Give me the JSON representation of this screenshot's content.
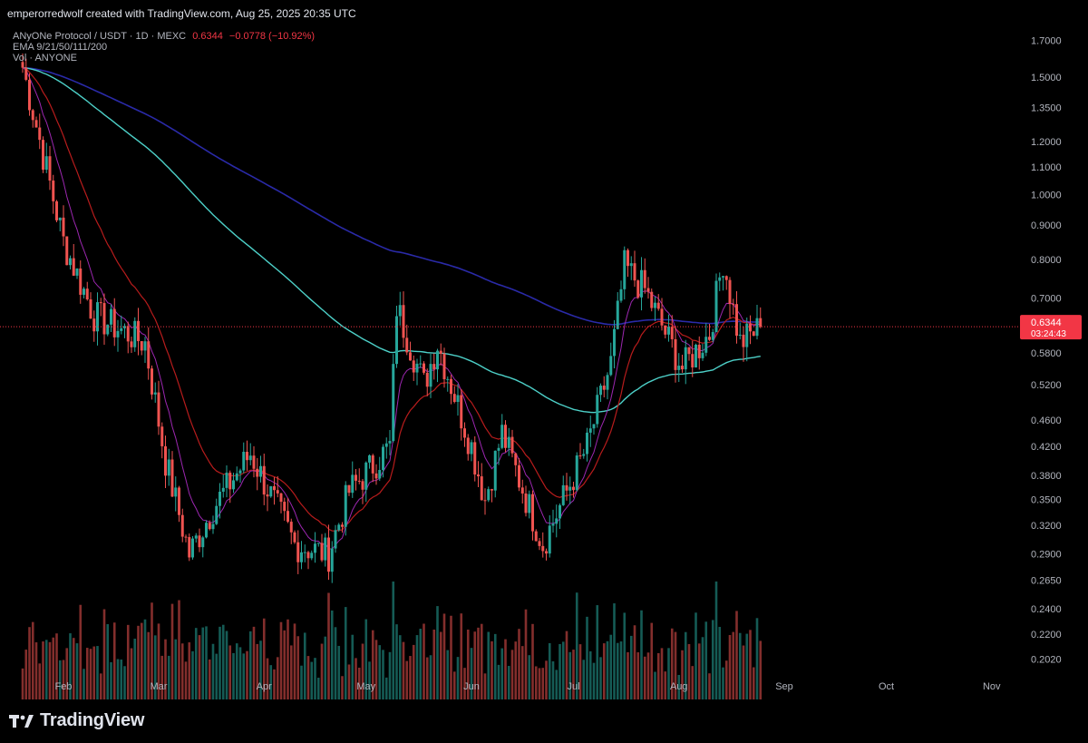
{
  "attribution": "emperorredwolf created with TradingView.com, Aug 25, 2025 20:35 UTC",
  "legend": {
    "symbol": "ANyONe Protocol / USDT · 1D · MEXC",
    "price": "0.6344",
    "change": "−0.0778 (−10.92%)",
    "ema": "EMA 9/21/50/111/200",
    "vol": "Vol · ANYONE"
  },
  "brand": "TradingView",
  "colors": {
    "up": "#26a69a",
    "down": "#ef5350",
    "ema_short": "#9c27b0",
    "ema_mid": "#b71c1c",
    "ema_111": "#4dd0c8",
    "ema_200": "#2a2aa8",
    "last_price": "#f23645"
  },
  "chart_data": {
    "type": "candlestick",
    "title": "ANyONe Protocol / USDT · 1D · MEXC",
    "y_scale": "log",
    "ylim": [
      0.19,
      1.78
    ],
    "y_ticks": [
      "1.7000",
      "1.5000",
      "1.3500",
      "1.2000",
      "1.1000",
      "1.0000",
      "0.9000",
      "0.8000",
      "0.7000",
      "0.6344",
      "0.5800",
      "0.5200",
      "0.4600",
      "0.4200",
      "0.3800",
      "0.3500",
      "0.3200",
      "0.2900",
      "0.2650",
      "0.2400",
      "0.2200",
      "0.2020"
    ],
    "x_ticks": [
      "Feb",
      "Mar",
      "Apr",
      "May",
      "Jun",
      "Jul",
      "Aug",
      "Sep",
      "Oct",
      "Nov"
    ],
    "last_price": "0.6344",
    "countdown": "03:24:43",
    "key_points": [
      {
        "date": "Jan 20",
        "close": 1.55
      },
      {
        "date": "Feb 1",
        "close": 0.85
      },
      {
        "date": "Feb 10",
        "close": 0.66
      },
      {
        "date": "Feb 25",
        "close": 0.6
      },
      {
        "date": "Mar 3",
        "close": 0.4
      },
      {
        "date": "Mar 10",
        "close": 0.29
      },
      {
        "date": "Mar 17",
        "close": 0.34
      },
      {
        "date": "Mar 28",
        "close": 0.41
      },
      {
        "date": "Apr 10",
        "close": 0.3
      },
      {
        "date": "Apr 20",
        "close": 0.29
      },
      {
        "date": "Apr 26",
        "close": 0.36
      },
      {
        "date": "May 8",
        "close": 0.42
      },
      {
        "date": "May 10",
        "close": 0.68
      },
      {
        "date": "May 18",
        "close": 0.52
      },
      {
        "date": "May 22",
        "close": 0.6
      },
      {
        "date": "Jun 1",
        "close": 0.42
      },
      {
        "date": "Jun 5",
        "close": 0.35
      },
      {
        "date": "Jun 10",
        "close": 0.44
      },
      {
        "date": "Jun 22",
        "close": 0.3
      },
      {
        "date": "Jul 5",
        "close": 0.42
      },
      {
        "date": "Jul 12",
        "close": 0.56
      },
      {
        "date": "Jul 16",
        "close": 0.78
      },
      {
        "date": "Jul 22",
        "close": 0.72
      },
      {
        "date": "Aug 2",
        "close": 0.55
      },
      {
        "date": "Aug 10",
        "close": 0.62
      },
      {
        "date": "Aug 14",
        "close": 0.8
      },
      {
        "date": "Aug 19",
        "close": 0.6
      },
      {
        "date": "Aug 25",
        "close": 0.6344
      }
    ],
    "grid": false,
    "legend_position": "top-left"
  }
}
